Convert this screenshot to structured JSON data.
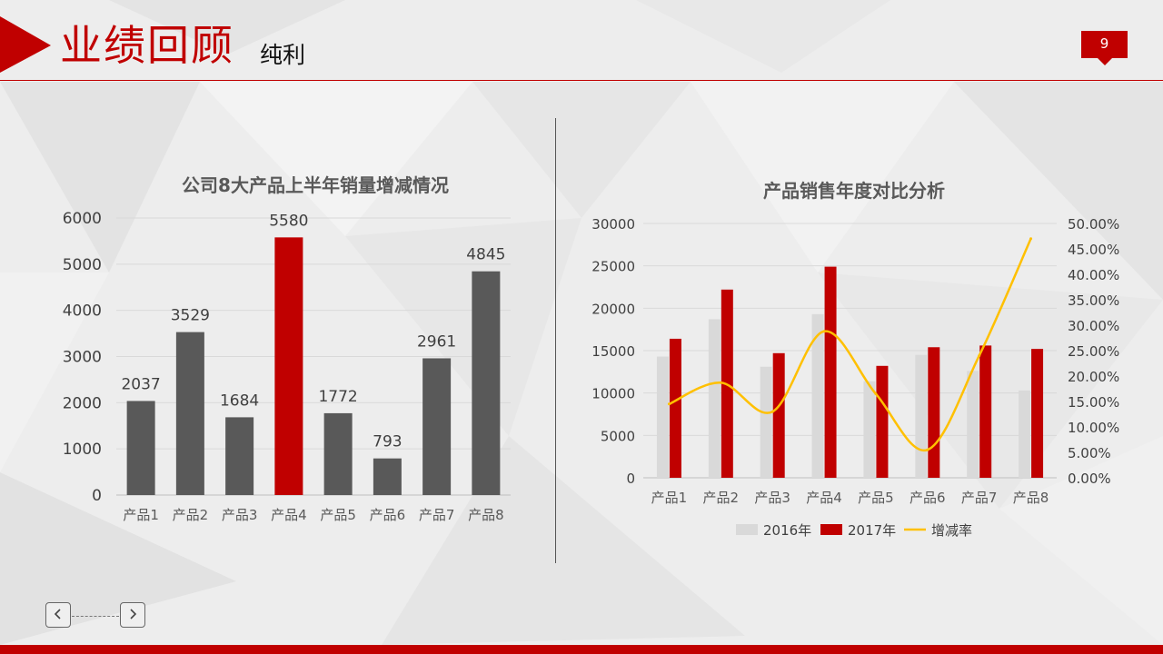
{
  "header": {
    "title": "业绩回顾",
    "subtitle": "纯利",
    "page_number": "9"
  },
  "colors": {
    "accent": "#c00000",
    "bar_dark": "#595959",
    "bar_light": "#d9d9d9",
    "line": "#ffc000"
  },
  "navigation": {
    "prev_icon": "chevron-left-icon",
    "next_icon": "chevron-right-icon"
  },
  "chart_data": [
    {
      "type": "bar",
      "title": "公司8大产品上半年销量增减情况",
      "categories": [
        "产品1",
        "产品2",
        "产品3",
        "产品4",
        "产品5",
        "产品6",
        "产品7",
        "产品8"
      ],
      "values": [
        2037,
        3529,
        1684,
        5580,
        1772,
        793,
        2961,
        4845
      ],
      "data_labels": [
        "2037",
        "3529",
        "1684",
        "5580",
        "1772",
        "793",
        "2961",
        "4845"
      ],
      "highlight_index": 3,
      "ylim": [
        0,
        6000
      ],
      "yticks": [
        "0",
        "1000",
        "2000",
        "3000",
        "4000",
        "5000",
        "6000"
      ],
      "grid": true
    },
    {
      "type": "bar",
      "title": "产品销售年度对比分析",
      "categories": [
        "产品1",
        "产品2",
        "产品3",
        "产品4",
        "产品5",
        "产品6",
        "产品7",
        "产品8"
      ],
      "series": [
        {
          "name": "2016年",
          "type": "bar",
          "values": [
            14300,
            18700,
            13100,
            19300,
            11400,
            14500,
            12600,
            10300
          ]
        },
        {
          "name": "2017年",
          "type": "bar",
          "values": [
            16400,
            22200,
            14700,
            24900,
            13200,
            15400,
            15600,
            15200
          ]
        },
        {
          "name": "增减率",
          "type": "line",
          "axis": "right",
          "values": [
            0.145,
            0.187,
            0.13,
            0.288,
            0.165,
            0.055,
            0.24,
            0.47
          ]
        }
      ],
      "ylim": [
        0,
        30000
      ],
      "yticks": [
        "0",
        "5000",
        "10000",
        "15000",
        "20000",
        "25000",
        "30000"
      ],
      "y2lim": [
        0,
        0.5
      ],
      "y2ticks": [
        "0.00%",
        "5.00%",
        "10.00%",
        "15.00%",
        "20.00%",
        "25.00%",
        "30.00%",
        "35.00%",
        "40.00%",
        "45.00%",
        "50.00%"
      ],
      "legend": [
        "2016年",
        "2017年",
        "增减率"
      ],
      "legend_position": "bottom",
      "grid": true
    }
  ]
}
